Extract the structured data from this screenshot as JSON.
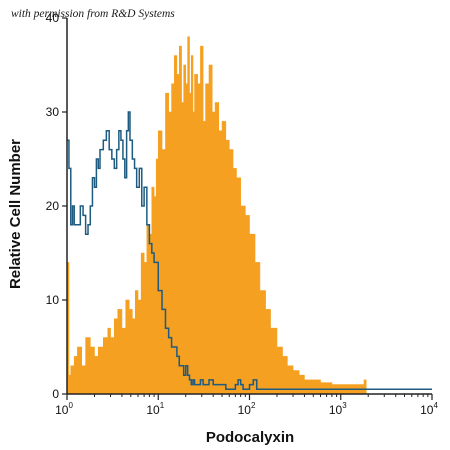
{
  "watermark": "with permission from R&D Systems",
  "chart_data": {
    "type": "area",
    "title": "",
    "xlabel": "Podocalyxin",
    "ylabel": "Relative Cell Number",
    "x_scale": "log",
    "xlim": [
      1,
      10000
    ],
    "ylim": [
      0,
      40
    ],
    "x_ticks": [
      {
        "value": 1,
        "base": "10",
        "exp": "0"
      },
      {
        "value": 10,
        "base": "10",
        "exp": "1"
      },
      {
        "value": 100,
        "base": "10",
        "exp": "2"
      },
      {
        "value": 1000,
        "base": "10",
        "exp": "3"
      },
      {
        "value": 10000,
        "base": "10",
        "exp": "4"
      }
    ],
    "y_ticks": [
      {
        "value": 0,
        "label": "0"
      },
      {
        "value": 10,
        "label": "10"
      },
      {
        "value": 20,
        "label": "20"
      },
      {
        "value": 30,
        "label": "30"
      },
      {
        "value": 40,
        "label": "40"
      }
    ],
    "grid": false,
    "legend": "none",
    "colors": {
      "stained": "#F5A020",
      "control": "#1F5A80",
      "axis": "#222222"
    },
    "series": [
      {
        "style": "filled",
        "color": "#F5A020",
        "x": [
          1,
          1.05,
          1.1,
          1.2,
          1.3,
          1.45,
          1.6,
          1.8,
          2.0,
          2.2,
          2.5,
          2.8,
          3.0,
          3.3,
          3.6,
          4.0,
          4.4,
          4.8,
          5.2,
          5.6,
          6.0,
          6.5,
          7.0,
          7.5,
          8.0,
          8.5,
          9.0,
          9.5,
          10,
          11,
          12,
          13,
          14,
          15,
          16,
          17,
          18,
          19,
          20,
          21,
          22,
          23,
          24,
          25,
          27,
          29,
          31,
          33,
          36,
          39,
          42,
          46,
          50,
          55,
          60,
          66,
          72,
          80,
          90,
          100,
          115,
          130,
          150,
          170,
          200,
          230,
          260,
          300,
          350,
          400,
          500,
          600,
          800,
          1000,
          1200,
          1500,
          1800,
          1900
        ],
        "values": [
          14,
          2,
          3,
          4,
          5,
          3,
          6,
          5,
          4,
          5,
          6,
          7,
          6,
          8,
          9,
          7,
          10,
          9,
          8,
          11,
          10,
          15,
          14,
          18,
          17,
          22,
          21,
          25,
          28,
          26,
          32,
          30,
          33,
          36,
          34,
          37,
          31,
          35,
          33,
          38,
          32,
          36,
          30,
          34,
          33,
          37,
          29,
          33,
          35,
          30,
          31,
          28,
          29,
          27,
          26,
          24,
          23,
          20,
          19,
          17,
          14,
          11,
          9,
          7,
          5,
          4,
          3,
          2.5,
          2,
          1.5,
          1.5,
          1.2,
          1,
          1,
          1,
          1,
          1.5,
          0
        ]
      },
      {
        "style": "line",
        "color": "#1F5A80",
        "x": [
          1,
          1.05,
          1.1,
          1.15,
          1.2,
          1.3,
          1.4,
          1.5,
          1.6,
          1.7,
          1.8,
          1.9,
          2.0,
          2.1,
          2.2,
          2.3,
          2.5,
          2.7,
          2.9,
          3.1,
          3.3,
          3.5,
          3.7,
          3.9,
          4.1,
          4.3,
          4.5,
          4.7,
          4.9,
          5.2,
          5.5,
          5.8,
          6.2,
          6.6,
          7.0,
          7.5,
          8.0,
          8.5,
          9.0,
          10,
          11,
          12,
          13,
          14,
          15,
          16,
          17,
          18,
          19,
          20,
          21,
          22,
          23,
          24,
          25,
          27,
          29,
          31,
          33,
          36,
          40,
          45,
          50,
          55,
          60,
          65,
          70,
          75,
          80,
          85,
          90,
          100,
          110,
          120,
          150,
          200,
          400,
          700,
          1000,
          2000,
          5000,
          10000
        ],
        "values": [
          27,
          24,
          18,
          20,
          18,
          18,
          20,
          19,
          17,
          18,
          20,
          23,
          22,
          25,
          24,
          26,
          27,
          28,
          26,
          25,
          24,
          26,
          28,
          27,
          25,
          23,
          28,
          30,
          27,
          25,
          24,
          22,
          24,
          20,
          22,
          18,
          16,
          15,
          14,
          11,
          9,
          7,
          6,
          5,
          5,
          4,
          3,
          3,
          2,
          3,
          2,
          1.5,
          1,
          1.5,
          1,
          1,
          1.5,
          1,
          1,
          1.5,
          1,
          1,
          1,
          0.5,
          0.5,
          0.5,
          1,
          1.5,
          1,
          0.5,
          0.5,
          1,
          1.5,
          0.5,
          0.5,
          0.5,
          0.5,
          0.5,
          0.5,
          0.5,
          0.5,
          0.5
        ]
      }
    ]
  }
}
